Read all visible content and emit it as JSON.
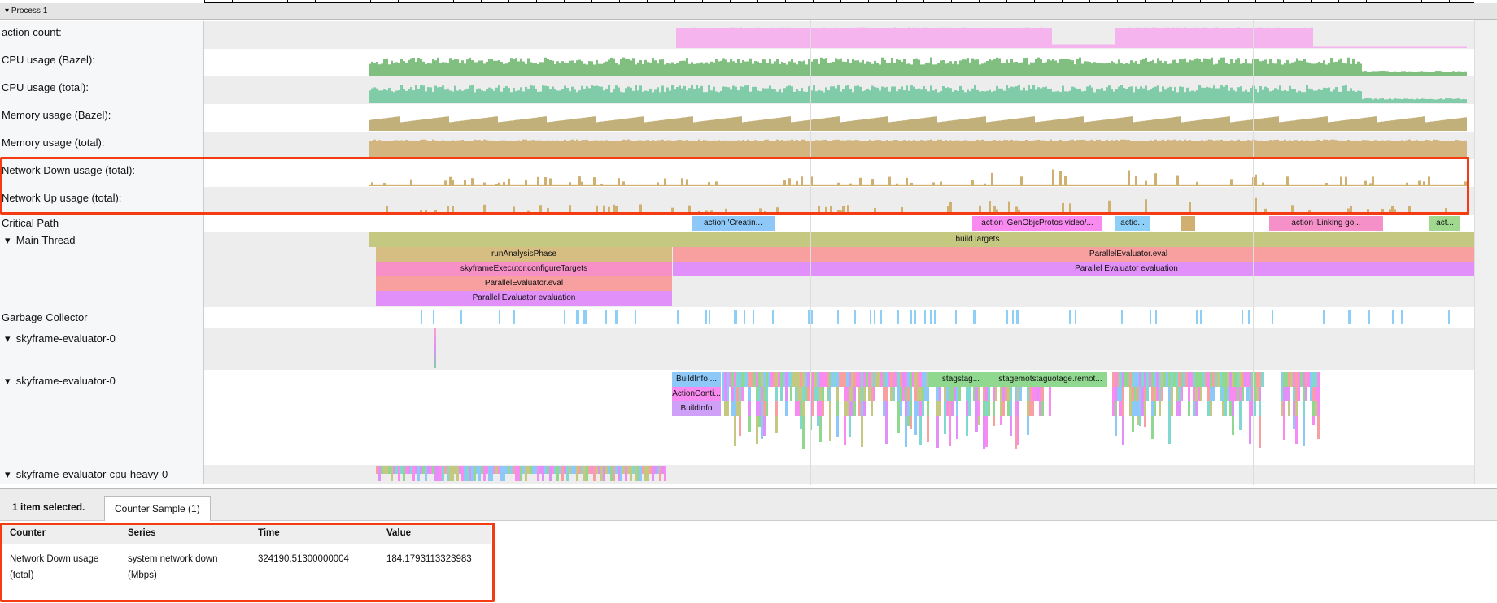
{
  "process": {
    "label": "Process 1"
  },
  "counters": [
    {
      "label": "action count:",
      "color": "#f5b4ee"
    },
    {
      "label": "CPU usage (Bazel):",
      "color": "#80bf80"
    },
    {
      "label": "CPU usage (total):",
      "color": "#80cca8"
    },
    {
      "label": "Memory usage (Bazel):",
      "color": "#c2b07a"
    },
    {
      "label": "Memory usage (total):",
      "color": "#d3b57f"
    },
    {
      "label": "Network Down usage (total):",
      "color": "#d0b070"
    },
    {
      "label": "Network Up usage (total):",
      "color": "#d0b070"
    }
  ],
  "threads": {
    "critical_path": "Critical Path",
    "main_thread": "Main Thread",
    "gc": "Garbage Collector",
    "eval0a": "skyframe-evaluator-0",
    "eval0b": "skyframe-evaluator-0",
    "cpu_heavy": "skyframe-evaluator-cpu-heavy-0"
  },
  "critical_slices": [
    "action 'Creatin...",
    "action 'GenObjcProtos video/...",
    "actio...",
    "action 'Linking go...",
    "act..."
  ],
  "main_slices": {
    "build": "buildTargets",
    "analysis": "runAnalysisPhase",
    "pe_eval": "ParallelEvaluator.eval",
    "configure": "skyframeExecutor.configureTargets",
    "pe_eval2": "ParallelEvaluator.eval",
    "pe_evaluation": "Parallel Evaluator evaluation",
    "pe_evaluation2": "Parallel Evaluator evaluation"
  },
  "eval_slices": {
    "b1": "BuildInfo ...",
    "a1": "ActionConti...",
    "b2": "BuildInfo",
    "s1": "stagstag...",
    "s2": "stagemotstaguotage.remot..."
  },
  "details": {
    "selection": "1 item selected.",
    "tab": "Counter Sample (1)",
    "columns": [
      "Counter",
      "Series",
      "Time",
      "Value"
    ],
    "row": {
      "counter": "Network Down usage (total)",
      "series": "system network down (Mbps)",
      "time": "324190.51300000004",
      "value": "184.1793113323983"
    }
  },
  "highlight_color": "#f53b12"
}
